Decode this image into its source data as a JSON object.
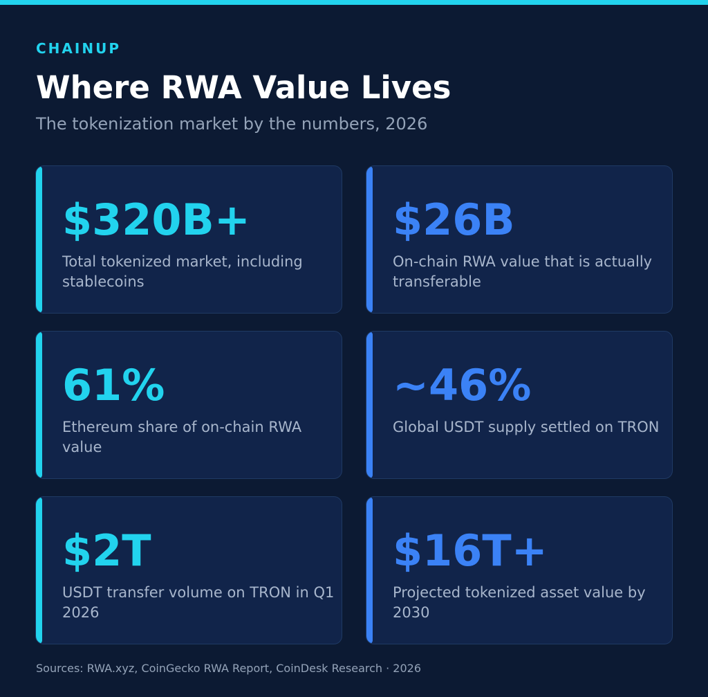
{
  "header": {
    "brand": "CHAINUP",
    "title": "Where RWA Value Lives",
    "subtitle": "The tokenization market by the numbers, 2026"
  },
  "stats": [
    {
      "value": "$320B+",
      "label": "Total tokenized market, including stablecoins",
      "accent": "#22d3ee"
    },
    {
      "value": "$26B",
      "label": "On-chain RWA value that is actually transferable",
      "accent": "#3b82f6"
    },
    {
      "value": "61%",
      "label": "Ethereum share of on-chain RWA value",
      "accent": "#22d3ee"
    },
    {
      "value": "~46%",
      "label": "Global USDT supply settled on TRON",
      "accent": "#3b82f6"
    },
    {
      "value": "$2T",
      "label": "USDT transfer volume on TRON in Q1 2026",
      "accent": "#22d3ee"
    },
    {
      "value": "$16T+",
      "label": "Projected tokenized asset value by 2030",
      "accent": "#3b82f6"
    }
  ],
  "footer": {
    "sources": "Sources: RWA.xyz, CoinGecko RWA Report, CoinDesk Research · 2026"
  },
  "colors": {
    "background": "#0c1a33",
    "card": "#11244a",
    "cyan": "#22d3ee",
    "blue": "#3b82f6"
  }
}
